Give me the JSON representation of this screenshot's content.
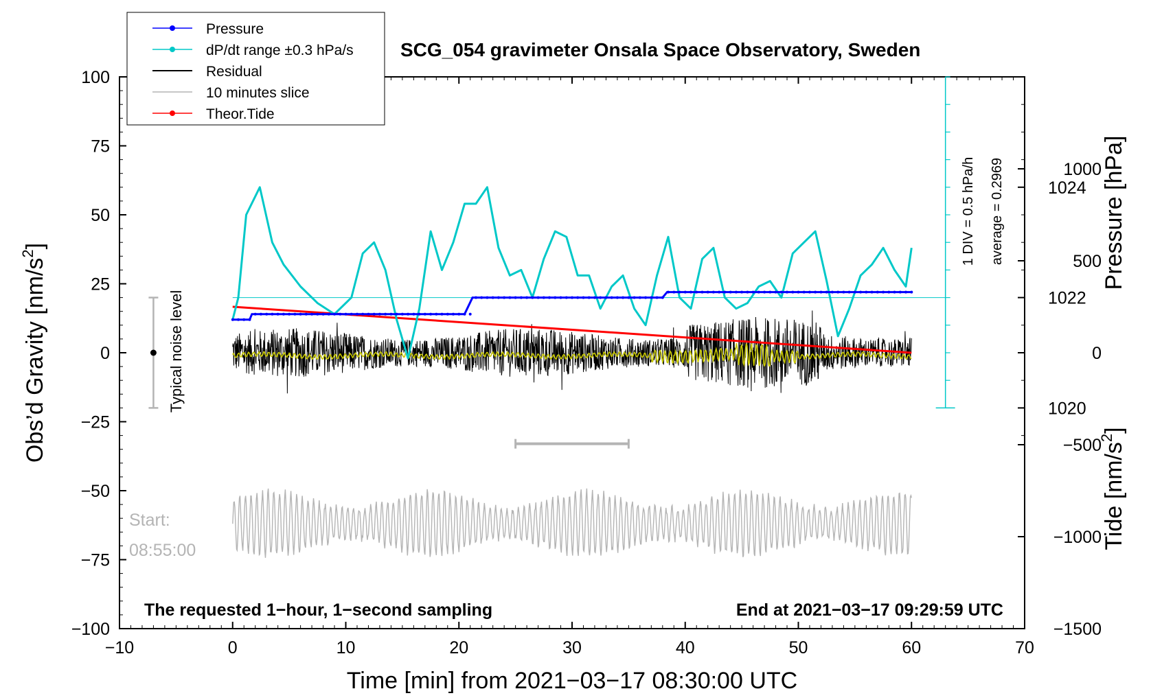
{
  "chart_data": {
    "type": "line",
    "title": "SCG_054 gravimeter Onsala Space Observatory, Sweden",
    "xlabel": "Time [min] from 2021−03−17 08:30:00 UTC",
    "ylabel": "Obs’d Gravity [nm/s",
    "ylabel_sup": "2",
    "ylabel_close": "]",
    "y2label": "Pressure [hPa]",
    "y3label": "Tide [nm/s",
    "y3label_sup": "2",
    "y3label_close": "]",
    "xlim": [
      -10,
      70
    ],
    "ylim": [
      -100,
      100
    ],
    "pressure_ylim": [
      1016,
      1026
    ],
    "tide_ylim": [
      -1500,
      1500
    ],
    "x_ticks": [
      "−10",
      "0",
      "10",
      "20",
      "30",
      "40",
      "50",
      "60",
      "70"
    ],
    "y_ticks": [
      "−100",
      "−75",
      "−50",
      "−25",
      "0",
      "25",
      "50",
      "75",
      "100"
    ],
    "pressure_ticks": [
      "1020",
      "1022",
      "1024"
    ],
    "tide_ticks": [
      "−1500",
      "−1000",
      "−500",
      "0",
      "500",
      "1000"
    ],
    "legend": [
      {
        "label": "Pressure",
        "color": "#0000ff",
        "marker": true
      },
      {
        "label": "dP/dt range ±0.3 hPa/s",
        "color": "#00c8c8",
        "marker": true
      },
      {
        "label": "Residual",
        "color": "#000000",
        "marker": false
      },
      {
        "label": "10 minutes slice",
        "color": "#b4b4b4",
        "marker": false
      },
      {
        "label": "Theor.Tide",
        "color": "#ff0000",
        "marker": true
      }
    ],
    "series": [
      {
        "name": "Pressure",
        "unit": "hPa",
        "color": "#0000ff",
        "x": [
          0,
          1.5,
          1.7,
          20.5,
          21.2,
          38,
          38.4,
          60
        ],
        "values": [
          1021.6,
          1021.6,
          1021.7,
          1021.7,
          1022.0,
          1022.0,
          1022.1,
          1022.1
        ]
      },
      {
        "name": "dP/dt range ±0.3 hPa/s",
        "unit": "hPa-scale",
        "color": "#00c8c8",
        "x": [
          0,
          0.5,
          1.2,
          2.4,
          3.5,
          4.5,
          6,
          7.5,
          9,
          10.5,
          11.5,
          12.5,
          13.5,
          14.5,
          15.5,
          16.5,
          17.5,
          18.5,
          19.5,
          20.5,
          21.5,
          22.5,
          23.5,
          24.5,
          25.5,
          26.5,
          27.5,
          28.5,
          29.5,
          30.5,
          31.5,
          32.5,
          33.5,
          34.5,
          35.5,
          36.5,
          37.5,
          38.5,
          39.5,
          40.5,
          41.5,
          42.5,
          43.5,
          44.5,
          45.5,
          46.5,
          47.5,
          48.5,
          49.5,
          50.5,
          51.5,
          52.5,
          53.5,
          54.5,
          55.5,
          56.5,
          57.5,
          58.5,
          59.5,
          60
        ],
        "values": [
          1021.6,
          1022.0,
          1023.5,
          1024.0,
          1023.0,
          1022.6,
          1022.2,
          1021.9,
          1021.7,
          1022.0,
          1022.8,
          1023.0,
          1022.5,
          1021.6,
          1020.9,
          1021.8,
          1023.2,
          1022.5,
          1023.0,
          1023.7,
          1023.7,
          1024.0,
          1022.9,
          1022.4,
          1022.5,
          1022.0,
          1022.7,
          1023.2,
          1023.1,
          1022.4,
          1022.4,
          1021.8,
          1022.2,
          1022.4,
          1021.8,
          1021.5,
          1022.4,
          1023.1,
          1022.0,
          1021.8,
          1022.7,
          1022.9,
          1022.0,
          1021.8,
          1021.9,
          1022.2,
          1022.3,
          1022.0,
          1022.8,
          1023.0,
          1023.2,
          1022.3,
          1021.3,
          1021.8,
          1022.4,
          1022.6,
          1022.9,
          1022.5,
          1022.2,
          1022.9
        ]
      },
      {
        "name": "Residual",
        "unit": "nm/s2",
        "color": "#000000",
        "x_range": [
          0,
          60
        ],
        "amplitude_range": [
          -20,
          23
        ],
        "note": "1-second sampled noise, roughly ±8 typical"
      },
      {
        "name": "Filtered residual",
        "unit": "nm/s2",
        "color": "#c8c800",
        "x_range": [
          0,
          60
        ],
        "amplitude_range": [
          -3,
          3
        ]
      },
      {
        "name": "10 minutes slice",
        "unit": "nm/s2",
        "color": "#b4b4b4",
        "x_range": [
          0,
          60
        ],
        "center": -62,
        "amplitude_range": [
          -77,
          -47
        ]
      },
      {
        "name": "Theor.Tide",
        "unit": "nm/s2 (tide scale)",
        "color": "#ff0000",
        "x": [
          0,
          60
        ],
        "values": [
          250,
          0
        ]
      }
    ],
    "slice_marker": {
      "x": [
        25,
        35
      ],
      "y": -33
    },
    "noise_bar": {
      "x": -7,
      "y": [
        -20,
        20
      ],
      "label": "Typical noise level"
    },
    "pressure_ref_line": 1022,
    "scale_bar": {
      "x": 63,
      "y_range": [
        1020,
        1026
      ],
      "label1": "1 DIV = 0.5 hPa/h",
      "label2": "average = 0.2969"
    },
    "annotations": {
      "start1": "Start:",
      "start2": "08:55:00",
      "left_note": "The requested 1−hour, 1−second sampling",
      "right_note": "End at 2021−03−17 09:29:59 UTC"
    }
  }
}
